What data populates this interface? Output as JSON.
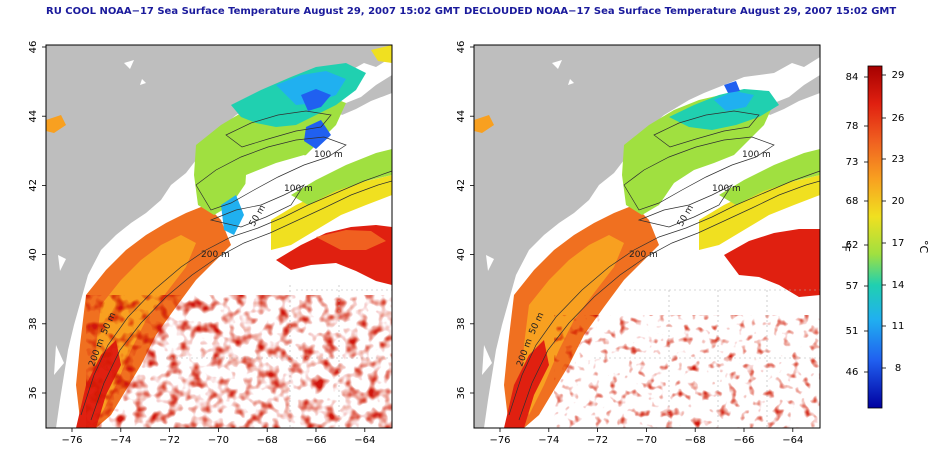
{
  "panels": [
    {
      "title": "RU COOL NOAA−17 Sea Surface Temperature August 29, 2007 15:02 GMT",
      "contour_labels": [
        "100 m",
        "100 m",
        "50 m",
        "200 m",
        "50 m",
        "200 m"
      ]
    },
    {
      "title": "DECLOUDED NOAA−17 Sea Surface Temperature August 29, 2007 15:02 GMT",
      "contour_labels": [
        "100 m",
        "100 m",
        "50 m",
        "200 m",
        "50 m",
        "200 m"
      ]
    }
  ],
  "axes": {
    "x_ticks": [
      "−76",
      "−74",
      "−72",
      "−70",
      "−68",
      "−66",
      "−64"
    ],
    "y_ticks": [
      "46",
      "44",
      "42",
      "40",
      "38",
      "36"
    ]
  },
  "colorbar": {
    "fahrenheit_ticks": [
      "84",
      "78",
      "73",
      "68",
      "62",
      "57",
      "51",
      "46"
    ],
    "celsius_ticks": [
      "29",
      "26",
      "23",
      "20",
      "17",
      "14",
      "11",
      "8"
    ],
    "left_label": "°F",
    "right_label": "°C",
    "colors": [
      "#a50000",
      "#e02010",
      "#f06020",
      "#f8a020",
      "#f0e020",
      "#a0e040",
      "#20d0b0",
      "#20b0f0",
      "#2060f0",
      "#0000a0"
    ]
  },
  "colors": {
    "land": "#bebebe",
    "cloud": "#ffffff",
    "frame": "#000000",
    "grid": "#b0b0b0"
  }
}
